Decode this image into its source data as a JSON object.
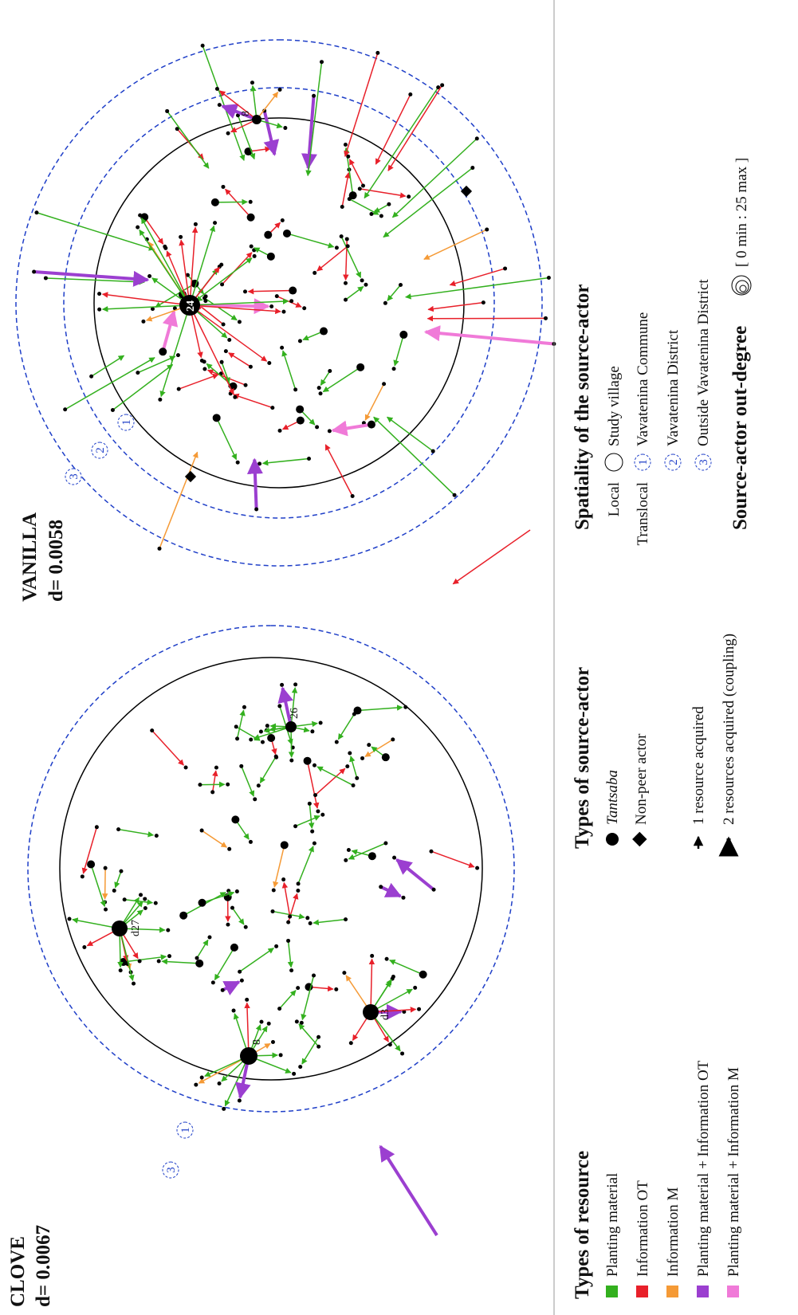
{
  "clove": {
    "title": "CLOVE",
    "density": "d= 0.0067",
    "node_labels": [
      "8",
      "d27",
      "26",
      "d3"
    ],
    "rings": [
      "1",
      "3"
    ]
  },
  "vanilla": {
    "title": "VANILLA",
    "density": "d= 0.0058",
    "node_labels": [
      "24",
      "8"
    ],
    "rings": [
      "1",
      "2",
      "3"
    ]
  },
  "legend": {
    "resource": {
      "title": "Types of resource",
      "items": [
        "Planting material",
        "Information OT",
        "Information M",
        "Planting material + Information OT",
        "Planting material + Information M"
      ]
    },
    "actor": {
      "title": "Types of source-actor",
      "items": [
        "Tantsaba",
        "Non-peer actor",
        "1 resource acquired",
        "2 resources acquired (coupling)"
      ]
    },
    "spatiality": {
      "title": "Spatiality of the source-actor",
      "local": "Local",
      "local_item": "Study village",
      "translocal": "Translocal",
      "items": [
        {
          "num": "1",
          "label": "Vavatenina Commune"
        },
        {
          "num": "2",
          "label": "Vavatenina District"
        },
        {
          "num": "3",
          "label": "Outside Vavatenina District"
        }
      ],
      "outdegree": "Source-actor out-degree",
      "outdegree_range": "[ 0 min : 25 max ]"
    }
  }
}
